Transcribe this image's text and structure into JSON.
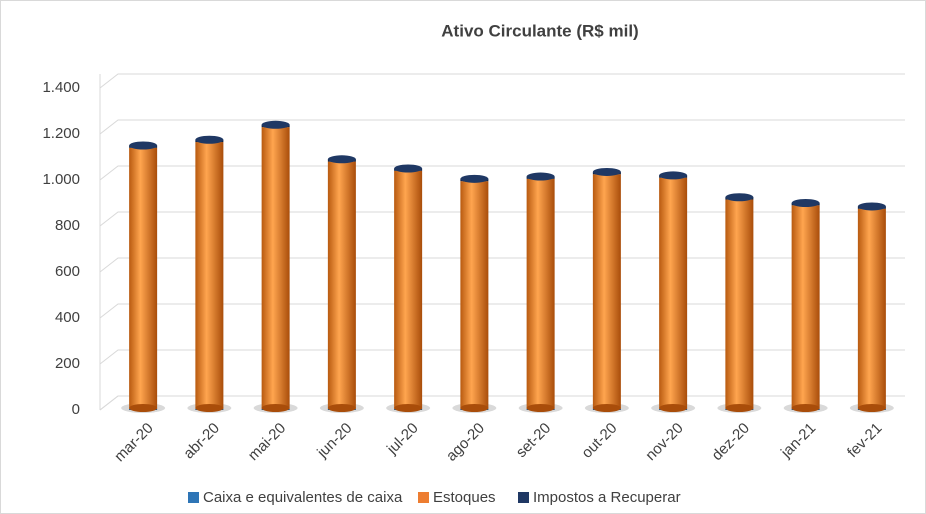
{
  "chart_data": {
    "type": "bar",
    "stacked": true,
    "title": "Ativo Circulante  (R$ mil)",
    "categories": [
      "mar-20",
      "abr-20",
      "mai-20",
      "jun-20",
      "jul-20",
      "ago-20",
      "set-20",
      "out-20",
      "nov-20",
      "dez-20",
      "jan-21",
      "fev-21"
    ],
    "series": [
      {
        "name": "Caixa e equivalentes de caixa",
        "color": "#2e75b6",
        "values": [
          5,
          5,
          5,
          5,
          5,
          5,
          5,
          5,
          5,
          5,
          5,
          5
        ]
      },
      {
        "name": "Estoques",
        "color": "#ed7d31",
        "values": [
          1135,
          1160,
          1225,
          1075,
          1035,
          990,
          1000,
          1020,
          1005,
          910,
          885,
          870
        ]
      },
      {
        "name": "Impostos a Recuperar",
        "color": "#1f3864",
        "values": [
          10,
          10,
          10,
          10,
          10,
          10,
          10,
          10,
          10,
          10,
          10,
          10
        ]
      }
    ],
    "ylim": [
      0,
      1400
    ],
    "yticks": [
      0,
      200,
      400,
      600,
      800,
      {
        "value": 1000,
        "label": "1.000"
      },
      {
        "value": 1200,
        "label": "1.200"
      },
      {
        "value": 1400,
        "label": "1.400"
      }
    ],
    "grid": true,
    "legend": "bottom"
  }
}
